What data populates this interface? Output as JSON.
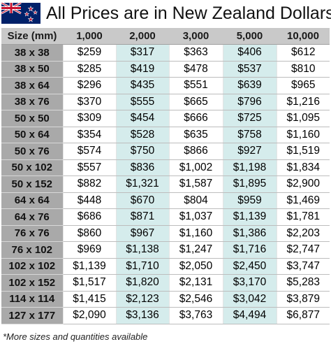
{
  "header": {
    "title": "All Prices are in New Zealand Dollars",
    "flag_icon": "new-zealand-flag-icon"
  },
  "table": {
    "corner_label": "Size (mm)",
    "quantities": [
      "1,000",
      "2,000",
      "3,000",
      "5,000",
      "10,000"
    ],
    "rows": [
      {
        "size": "38 x 38",
        "prices": [
          "$259",
          "$317",
          "$363",
          "$406",
          "$612"
        ]
      },
      {
        "size": "38 x 50",
        "prices": [
          "$285",
          "$419",
          "$478",
          "$537",
          "$810"
        ]
      },
      {
        "size": "38 x 64",
        "prices": [
          "$296",
          "$435",
          "$551",
          "$639",
          "$965"
        ]
      },
      {
        "size": "38 x 76",
        "prices": [
          "$370",
          "$555",
          "$665",
          "$796",
          "$1,216"
        ]
      },
      {
        "size": "50 x 50",
        "prices": [
          "$309",
          "$454",
          "$666",
          "$725",
          "$1,095"
        ]
      },
      {
        "size": "50 x 64",
        "prices": [
          "$354",
          "$528",
          "$635",
          "$758",
          "$1,160"
        ]
      },
      {
        "size": "50 x 76",
        "prices": [
          "$574",
          "$750",
          "$866",
          "$927",
          "$1,519"
        ]
      },
      {
        "size": "50 x 102",
        "prices": [
          "$557",
          "$836",
          "$1,002",
          "$1,198",
          "$1,834"
        ]
      },
      {
        "size": "50 x 152",
        "prices": [
          "$882",
          "$1,321",
          "$1,587",
          "$1,895",
          "$2,900"
        ]
      },
      {
        "size": "64 x 64",
        "prices": [
          "$448",
          "$670",
          "$804",
          "$959",
          "$1,469"
        ]
      },
      {
        "size": "64 x 76",
        "prices": [
          "$686",
          "$871",
          "$1,037",
          "$1,139",
          "$1,781"
        ]
      },
      {
        "size": "76 x 76",
        "prices": [
          "$860",
          "$967",
          "$1,160",
          "$1,386",
          "$2,203"
        ]
      },
      {
        "size": "76 x 102",
        "prices": [
          "$969",
          "$1,138",
          "$1,247",
          "$1,716",
          "$2,747"
        ]
      },
      {
        "size": "102 x 102",
        "prices": [
          "$1,139",
          "$1,710",
          "$2,050",
          "$2,450",
          "$3,747"
        ]
      },
      {
        "size": "102 x 152",
        "prices": [
          "$1,517",
          "$1,820",
          "$2,131",
          "$3,170",
          "$5,283"
        ]
      },
      {
        "size": "114 x 114",
        "prices": [
          "$1,415",
          "$2,123",
          "$2,546",
          "$3,042",
          "$3,879"
        ]
      },
      {
        "size": "127 x 177",
        "prices": [
          "$2,090",
          "$3,136",
          "$3,763",
          "$4,494",
          "$6,877"
        ]
      }
    ]
  },
  "footnote": "*More sizes and quantities available",
  "colors": {
    "header_row_bg": "#c9c9c9",
    "size_column_bg": "#a9a9a9",
    "tinted_column_bg": "#d5ecec",
    "flag_blue": "#012169",
    "flag_red": "#c8102e"
  }
}
